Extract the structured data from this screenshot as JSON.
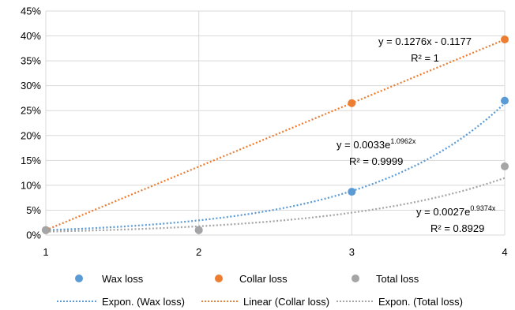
{
  "chart_data": {
    "type": "scatter",
    "x_ticks": [
      1,
      2,
      3,
      4
    ],
    "xlim": [
      1,
      4
    ],
    "ylim": [
      0,
      0.45
    ],
    "y_ticks": [
      "0%",
      "5%",
      "10%",
      "15%",
      "20%",
      "25%",
      "30%",
      "35%",
      "40%",
      "45%"
    ],
    "y_tick_values": [
      0,
      0.05,
      0.1,
      0.15,
      0.2,
      0.25,
      0.3,
      0.35,
      0.4,
      0.45
    ],
    "grid": true,
    "legend_position": "bottom",
    "series": [
      {
        "name": "Wax loss",
        "color": "#5b9bd5",
        "x": [
          1,
          2,
          3,
          4
        ],
        "y": [
          0.01,
          0.01,
          0.087,
          0.27
        ],
        "trend": {
          "name": "Expon. (Wax loss)",
          "kind": "exponential",
          "a": 0.0033,
          "b": 1.0962,
          "equation": "y = 0.0033e",
          "equation_exp": "1.0962x",
          "r2": "R² = 0.9999"
        }
      },
      {
        "name": "Collar loss",
        "color": "#ed7d31",
        "x": [
          1,
          3,
          4
        ],
        "y": [
          0.01,
          0.265,
          0.393
        ],
        "trend": {
          "name": "Linear (Collar loss)",
          "kind": "linear",
          "slope": 0.1276,
          "intercept": -0.1177,
          "equation": "y = 0.1276x - 0.1177",
          "equation_exp": "",
          "r2": "R² = 1"
        }
      },
      {
        "name": "Total loss",
        "color": "#a5a5a5",
        "x": [
          1,
          2,
          4
        ],
        "y": [
          0.01,
          0.01,
          0.138
        ],
        "trend": {
          "name": "Expon. (Total loss)",
          "kind": "exponential",
          "a": 0.0027,
          "b": 0.9374,
          "equation": "y = 0.0027e",
          "equation_exp": "0.9374x",
          "r2": "R² = 0.8929"
        }
      }
    ]
  }
}
